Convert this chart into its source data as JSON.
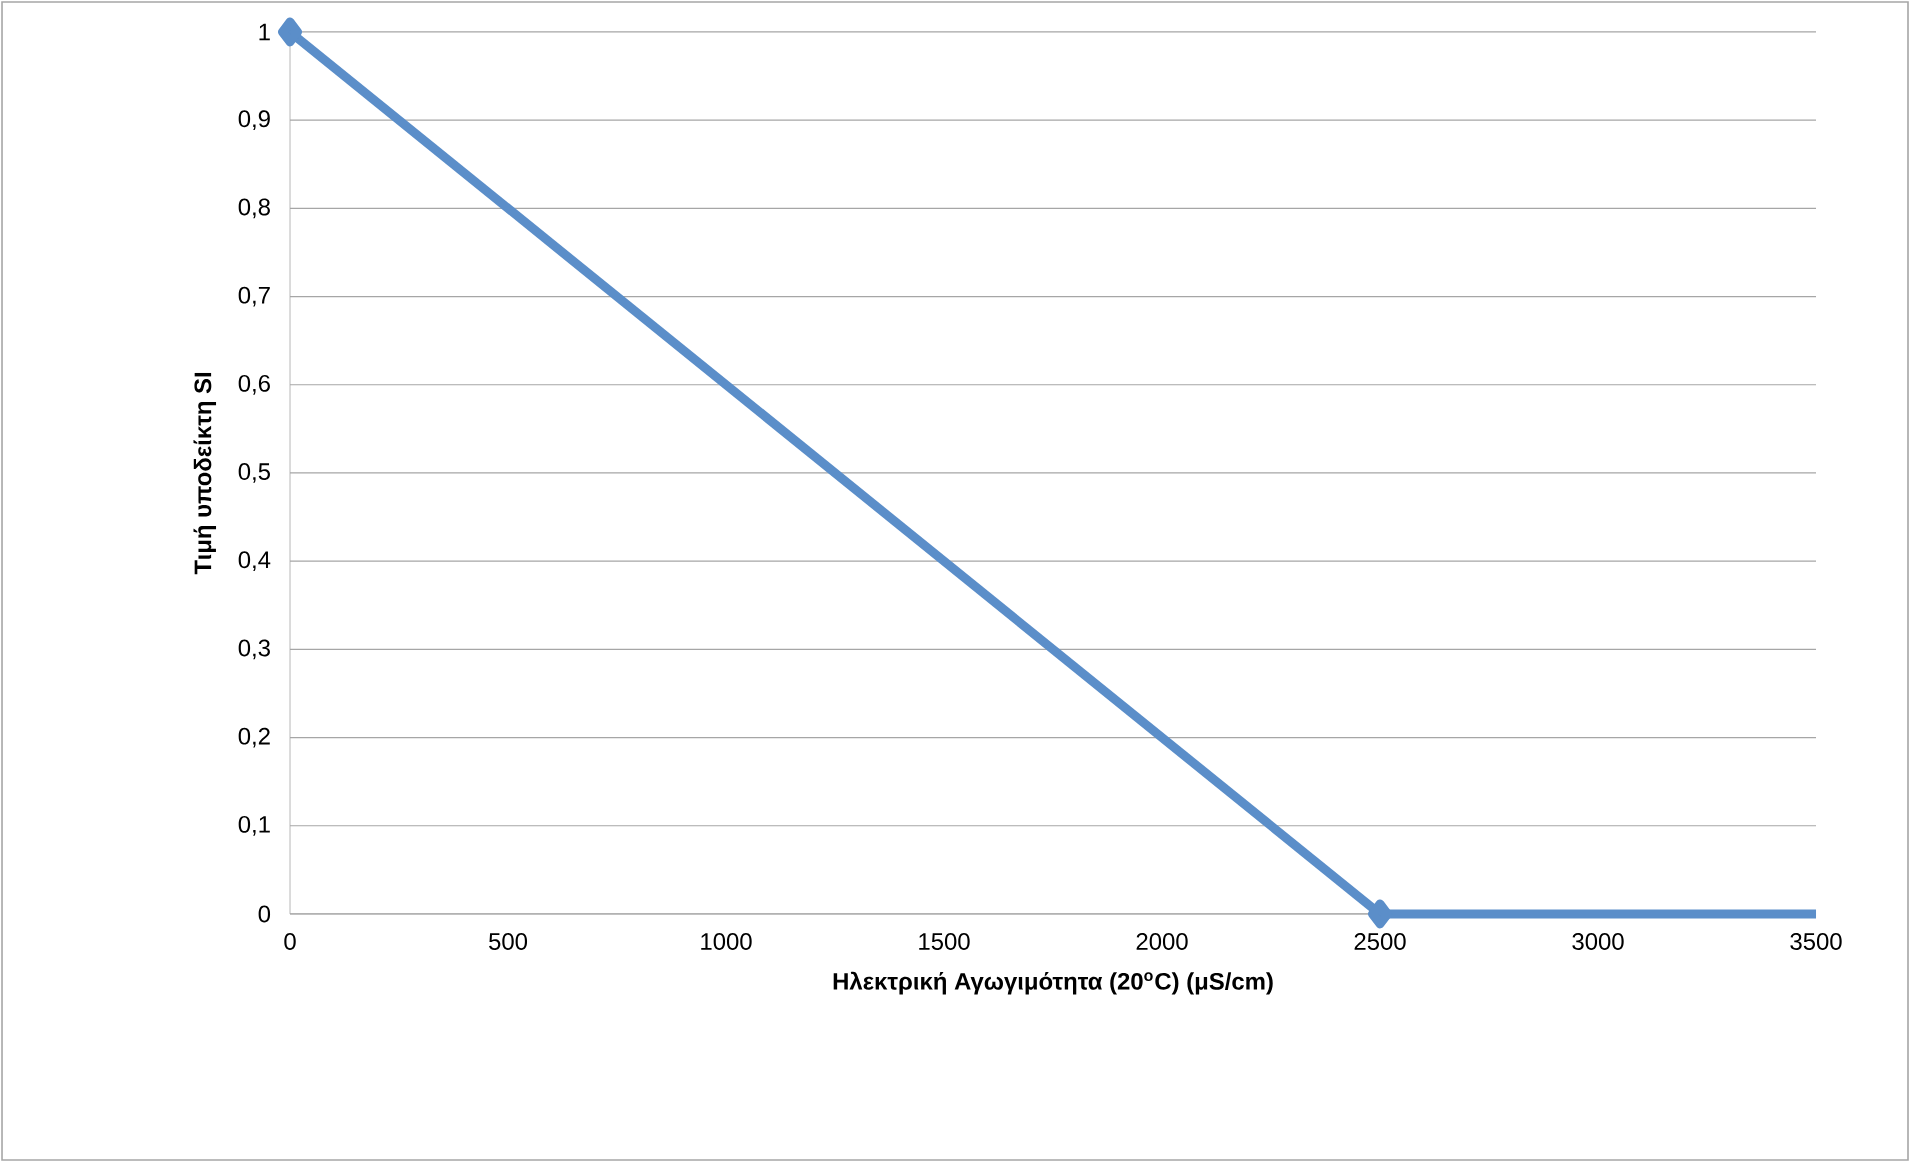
{
  "chart_data": {
    "type": "line",
    "xlabel": "Ηλεκτρική Αγωγιμότητα (20$^{o}$C) (μS/cm)",
    "ylabel": "Τιμή υποδείκτη SI",
    "xlim": [
      0,
      3500
    ],
    "xticks": [
      0,
      500,
      1000,
      1500,
      2000,
      2500,
      3000,
      3500
    ],
    "ylim": [
      0,
      1
    ],
    "yticks": [
      0,
      {
        "value": 0.1,
        "label": "0,1"
      },
      {
        "value": 0.2,
        "label": "0,2"
      },
      {
        "value": 0.3,
        "label": "0,3"
      },
      {
        "value": 0.4,
        "label": "0,4"
      },
      {
        "value": 0.5,
        "label": "0,5"
      },
      {
        "value": 0.6,
        "label": "0,6"
      },
      {
        "value": 0.7,
        "label": "0,7"
      },
      {
        "value": 0.8,
        "label": "0,8"
      },
      {
        "value": 0.9,
        "label": "0,9"
      },
      1
    ],
    "grid": "y",
    "series": [
      {
        "color": "#5b8ec9",
        "x": [
          0,
          2500
        ],
        "values": [
          1,
          0
        ],
        "marker": "diamond"
      },
      {
        "color": "#5b8ec9",
        "x": [
          2500,
          3500
        ],
        "values": [
          0,
          0
        ],
        "marker": "none"
      }
    ]
  }
}
